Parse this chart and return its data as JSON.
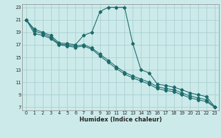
{
  "xlabel": "Humidex (Indice chaleur)",
  "bg_color": "#cceaea",
  "grid_color": "#aacfcf",
  "line_color": "#1e6b6b",
  "xlim": [
    -0.5,
    23.5
  ],
  "ylim": [
    6.5,
    23.5
  ],
  "xticks": [
    0,
    1,
    2,
    3,
    4,
    5,
    6,
    7,
    8,
    9,
    10,
    11,
    12,
    13,
    14,
    15,
    16,
    17,
    18,
    19,
    20,
    21,
    22,
    23
  ],
  "yticks": [
    7,
    9,
    11,
    13,
    15,
    17,
    19,
    21,
    23
  ],
  "lines": [
    {
      "x": [
        0,
        1,
        2,
        3,
        4,
        5,
        6,
        7,
        8,
        9,
        10,
        11,
        12,
        13,
        14,
        15,
        16,
        17,
        18,
        19,
        20,
        21,
        22,
        23
      ],
      "y": [
        21,
        19.5,
        19.0,
        18.5,
        17.3,
        17.2,
        17.0,
        18.5,
        19.0,
        22.3,
        23.0,
        23.0,
        23.0,
        17.2,
        13.0,
        12.5,
        10.7,
        10.5,
        10.2,
        9.8,
        9.3,
        9.0,
        8.7,
        7.1
      ]
    },
    {
      "x": [
        0,
        1,
        2,
        3,
        4,
        5,
        6,
        7,
        8,
        9,
        10,
        11,
        12,
        13,
        14,
        15,
        16,
        17,
        18,
        19,
        20,
        21,
        22,
        23
      ],
      "y": [
        21,
        19.2,
        18.8,
        18.2,
        17.1,
        17.0,
        16.8,
        17.0,
        16.5,
        15.5,
        14.5,
        13.5,
        12.6,
        12.0,
        11.5,
        11.0,
        10.3,
        10.0,
        9.8,
        9.3,
        8.8,
        8.5,
        8.2,
        7.0
      ]
    },
    {
      "x": [
        0,
        1,
        2,
        3,
        4,
        5,
        6,
        7,
        8,
        9,
        10,
        11,
        12,
        13,
        14,
        15,
        16,
        17,
        18,
        19,
        20,
        21,
        22,
        23
      ],
      "y": [
        21,
        18.8,
        18.5,
        18.0,
        17.0,
        16.8,
        16.6,
        16.8,
        16.3,
        15.2,
        14.2,
        13.2,
        12.3,
        11.7,
        11.2,
        10.7,
        10.0,
        9.7,
        9.5,
        9.0,
        8.5,
        8.2,
        7.9,
        7.0
      ]
    }
  ]
}
